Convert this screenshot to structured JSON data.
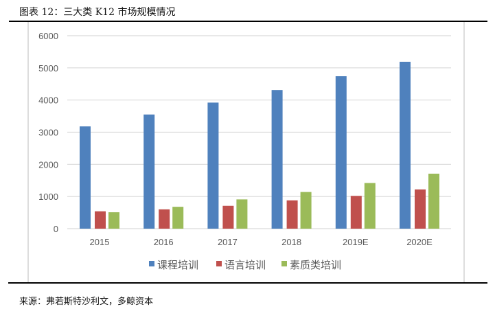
{
  "title": "图表 12：三大类 K12 市场规模情况",
  "source": "来源：弗若斯特沙利文，多鲸资本",
  "chart_data": {
    "type": "bar",
    "categories": [
      "2015",
      "2016",
      "2017",
      "2018",
      "2019E",
      "2020E"
    ],
    "series": [
      {
        "name": "课程培训",
        "color": "#4F81BD",
        "values": [
          3180,
          3550,
          3920,
          4310,
          4740,
          5190
        ]
      },
      {
        "name": "语言培训",
        "color": "#C0504D",
        "values": [
          540,
          600,
          710,
          880,
          1020,
          1220
        ]
      },
      {
        "name": "素质类培训",
        "color": "#9BBB59",
        "values": [
          510,
          680,
          910,
          1140,
          1420,
          1710
        ]
      }
    ],
    "ylim": [
      0,
      6000
    ],
    "yticks": [
      "0",
      "1000",
      "2000",
      "3000",
      "4000",
      "5000",
      "6000"
    ],
    "grid": true,
    "legend": "bottom",
    "xlabel": "",
    "ylabel": ""
  }
}
